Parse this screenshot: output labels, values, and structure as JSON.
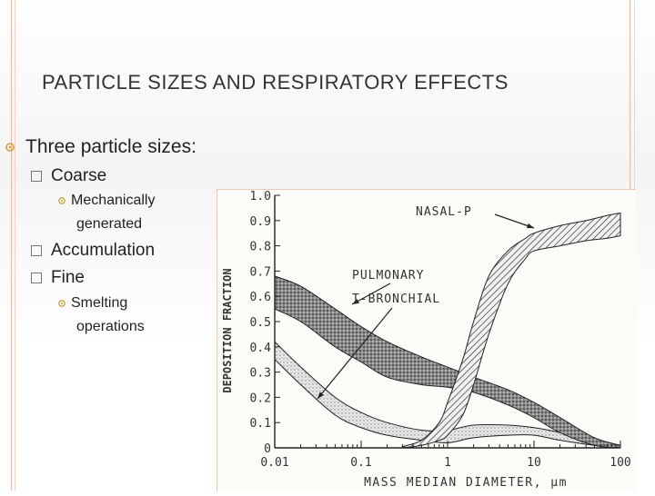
{
  "slide": {
    "title": "Particle sizes and respiratory effects",
    "bullets": {
      "level1": "Three particle sizes:",
      "coarse": "Coarse",
      "mech_line1": "Mechanically",
      "mech_line2": "generated",
      "accumulation": "Accumulation",
      "fine": "Fine",
      "smelt_line1": "Smelting",
      "smelt_line2": "operations"
    },
    "accent_color": "#e8a88e"
  },
  "chart_data": {
    "type": "area",
    "xlabel": "MASS MEDIAN DIAMETER, µm",
    "ylabel": "DEPOSITION FRACTION",
    "xscale": "log",
    "xlim": [
      0.01,
      100
    ],
    "ylim": [
      0,
      1.0
    ],
    "x_ticks": [
      0.01,
      0.1,
      1,
      10,
      100
    ],
    "x_tick_labels": [
      "0.01",
      "0.1",
      "1",
      "10",
      "100"
    ],
    "y_ticks": [
      0,
      0.1,
      0.2,
      0.3,
      0.4,
      0.5,
      0.6,
      0.7,
      0.8,
      0.9,
      1.0
    ],
    "y_tick_labels": [
      "0",
      "0.1",
      "0.2",
      "0.3",
      "0.4",
      "0.5",
      "0.6",
      "0.7",
      "0.8",
      "0.9",
      "1.0"
    ],
    "series": [
      {
        "name": "NASAL-P",
        "x": [
          0.3,
          0.5,
          0.8,
          1,
          1.5,
          2,
          3,
          5,
          8,
          10,
          20,
          40,
          70,
          100
        ],
        "lower": [
          0,
          0.01,
          0.03,
          0.05,
          0.13,
          0.25,
          0.45,
          0.65,
          0.75,
          0.78,
          0.8,
          0.82,
          0.83,
          0.84
        ],
        "upper": [
          0.005,
          0.03,
          0.1,
          0.18,
          0.35,
          0.5,
          0.68,
          0.78,
          0.83,
          0.85,
          0.88,
          0.9,
          0.92,
          0.93
        ],
        "pattern": "hatch"
      },
      {
        "name": "PULMONARY",
        "x": [
          0.01,
          0.02,
          0.05,
          0.1,
          0.2,
          0.5,
          1,
          2,
          5,
          10,
          20,
          50,
          100
        ],
        "lower": [
          0.55,
          0.5,
          0.4,
          0.34,
          0.28,
          0.25,
          0.24,
          0.22,
          0.17,
          0.12,
          0.06,
          0.01,
          0
        ],
        "upper": [
          0.68,
          0.64,
          0.55,
          0.48,
          0.42,
          0.36,
          0.32,
          0.28,
          0.23,
          0.18,
          0.12,
          0.04,
          0.01
        ],
        "pattern": "stipple-dense"
      },
      {
        "name": "T-BRONCHIAL",
        "x": [
          0.01,
          0.02,
          0.05,
          0.1,
          0.2,
          0.5,
          1,
          2,
          5,
          10,
          20,
          50,
          100
        ],
        "lower": [
          0.35,
          0.25,
          0.13,
          0.08,
          0.05,
          0.03,
          0.02,
          0.04,
          0.05,
          0.05,
          0.03,
          0.01,
          0
        ],
        "upper": [
          0.42,
          0.32,
          0.2,
          0.14,
          0.1,
          0.07,
          0.07,
          0.09,
          0.09,
          0.08,
          0.06,
          0.02,
          0.01
        ],
        "pattern": "stipple-light"
      }
    ],
    "annotations": [
      {
        "text": "NASAL-P",
        "target_series": "NASAL-P"
      },
      {
        "text": "PULMONARY",
        "target_series": "PULMONARY"
      },
      {
        "text": "T-BRONCHIAL",
        "target_series": "T-BRONCHIAL"
      }
    ],
    "grid": false,
    "legend": "none"
  }
}
